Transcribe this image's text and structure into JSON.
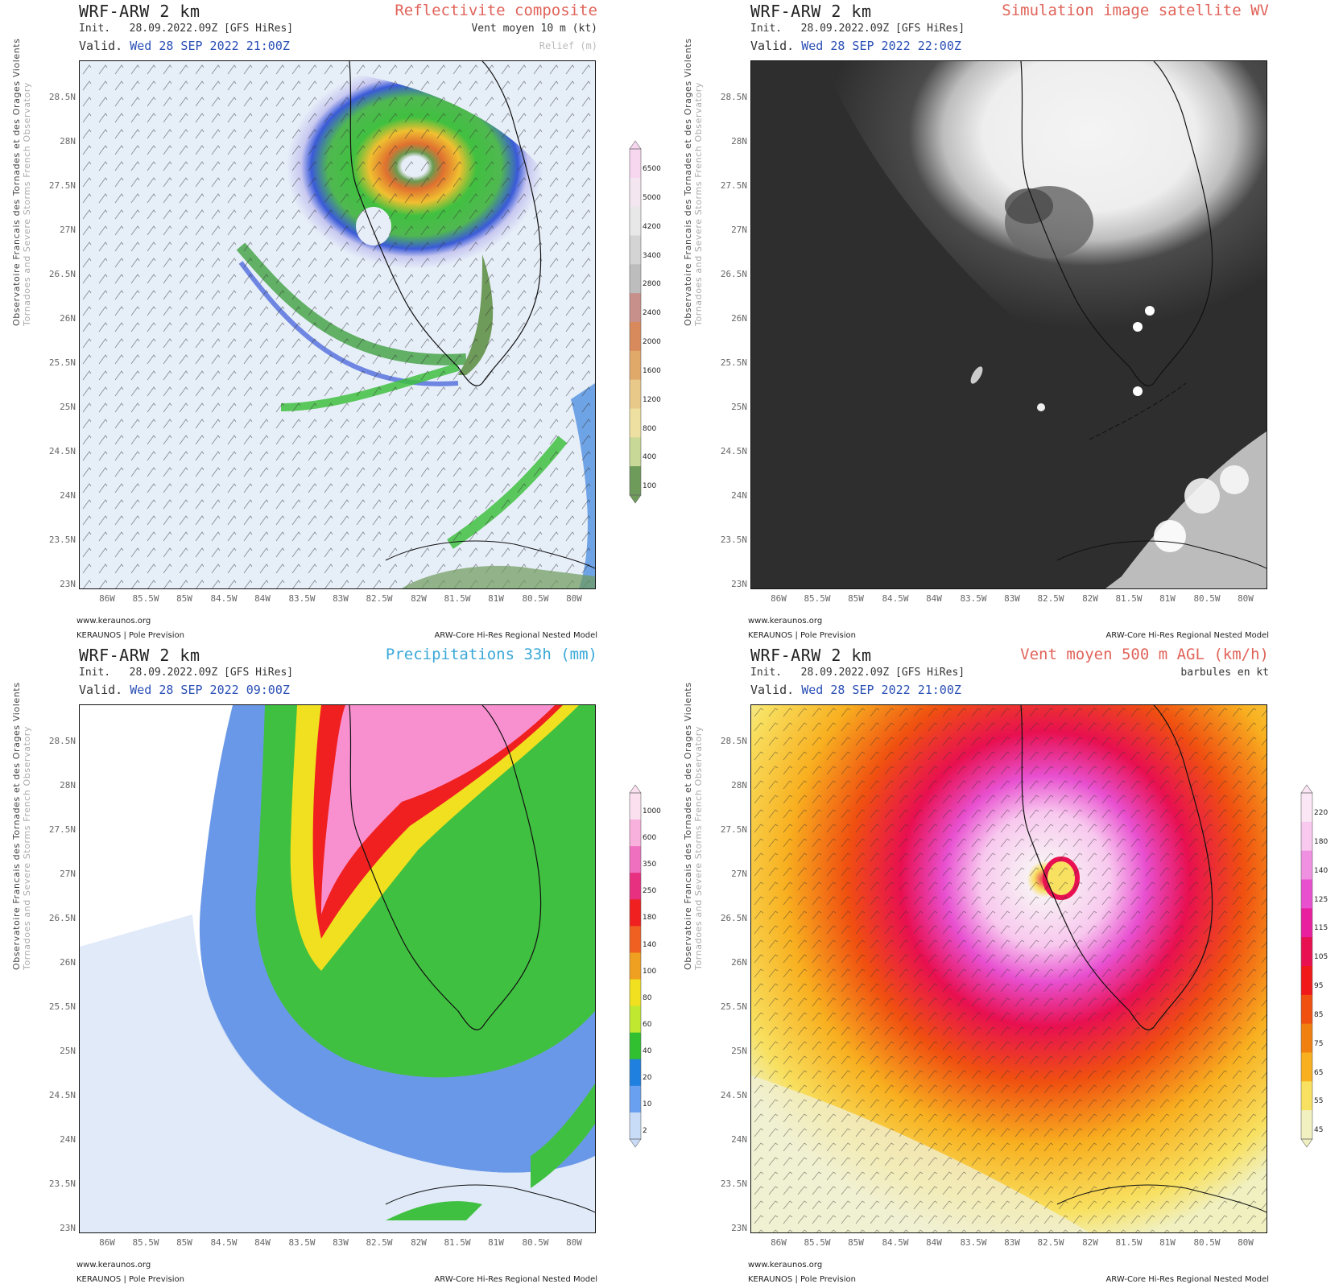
{
  "common": {
    "model": "WRF-ARW 2 km",
    "init_label": "Init.",
    "init": "28.09.2022.09Z [GFS HiRes]",
    "valid_label": "Valid.",
    "site": "www.keraunos.org",
    "org": "KERAUNOS | Pole Prevision",
    "model_name": "ARW-Core Hi-Res Regional Nested Model",
    "side_text_1": "Observatoire Francais des Tornades et des Orages Violents",
    "side_text_2": "Tornadoes and Severe Storms French Observatory",
    "lat_labels": [
      "28.5N",
      "28N",
      "27.5N",
      "27N",
      "26.5N",
      "26N",
      "25.5N",
      "25N",
      "24.5N",
      "24N",
      "23.5N",
      "23N"
    ],
    "lon_labels": [
      "86W",
      "85.5W",
      "85W",
      "84.5W",
      "84W",
      "83.5W",
      "83W",
      "82.5W",
      "82W",
      "81.5W",
      "81W",
      "80.5W",
      "80W"
    ]
  },
  "panels": [
    {
      "product": "Reflectivite composite",
      "product_color": "#e0645a",
      "valid_date": "Wed 28 SEP 2022 21:00Z",
      "subline": "Vent moyen 10 m (kt)",
      "subline2": "Relief (m)",
      "colorbar": {
        "labels": [
          "6500",
          "5000",
          "4200",
          "3400",
          "2800",
          "2400",
          "2000",
          "1600",
          "1200",
          "800",
          "400",
          "100"
        ],
        "colors": [
          "#f7d6ef",
          "#f3e6f0",
          "#e8e8e8",
          "#d4d4d4",
          "#bdbdbd",
          "#c8908a",
          "#d88a5c",
          "#e0a96a",
          "#e8c98a",
          "#eee0a0",
          "#c8d896",
          "#6e9a5a"
        ]
      }
    },
    {
      "product": "Simulation image satellite WV",
      "product_color": "#e0645a",
      "valid_date": "Wed 28 SEP 2022 22:00Z",
      "subline": "",
      "subline2": "",
      "colorbar": null
    },
    {
      "product": "Precipitations 33h (mm)",
      "product_color": "#3aa8d8",
      "valid_date": "Wed 28 SEP 2022 09:00Z",
      "subline": "",
      "subline2": "",
      "colorbar": {
        "labels": [
          "1000",
          "600",
          "350",
          "250",
          "180",
          "140",
          "100",
          "80",
          "60",
          "40",
          "20",
          "10",
          "2"
        ],
        "colors": [
          "#fbe0f0",
          "#f8b0dc",
          "#f070c0",
          "#e83080",
          "#f02020",
          "#f06020",
          "#f0a020",
          "#f0e020",
          "#c0e830",
          "#30c030",
          "#2080e0",
          "#6aa0f0",
          "#c8dcf8"
        ]
      }
    },
    {
      "product": "Vent moyen 500 m AGL (km/h)",
      "product_color": "#e0645a",
      "valid_date": "Wed 28 SEP 2022 21:00Z",
      "subline": "barbules en kt",
      "subline2": "",
      "colorbar": {
        "labels": [
          "220",
          "180",
          "140",
          "125",
          "115",
          "105",
          "95",
          "85",
          "75",
          "65",
          "55",
          "45"
        ],
        "colors": [
          "#fbe6f6",
          "#f8c8ee",
          "#f090e0",
          "#e850d0",
          "#e820a0",
          "#e81050",
          "#f01818",
          "#f05010",
          "#f08010",
          "#f8b020",
          "#f8e060",
          "#f0f0c0"
        ]
      }
    }
  ]
}
